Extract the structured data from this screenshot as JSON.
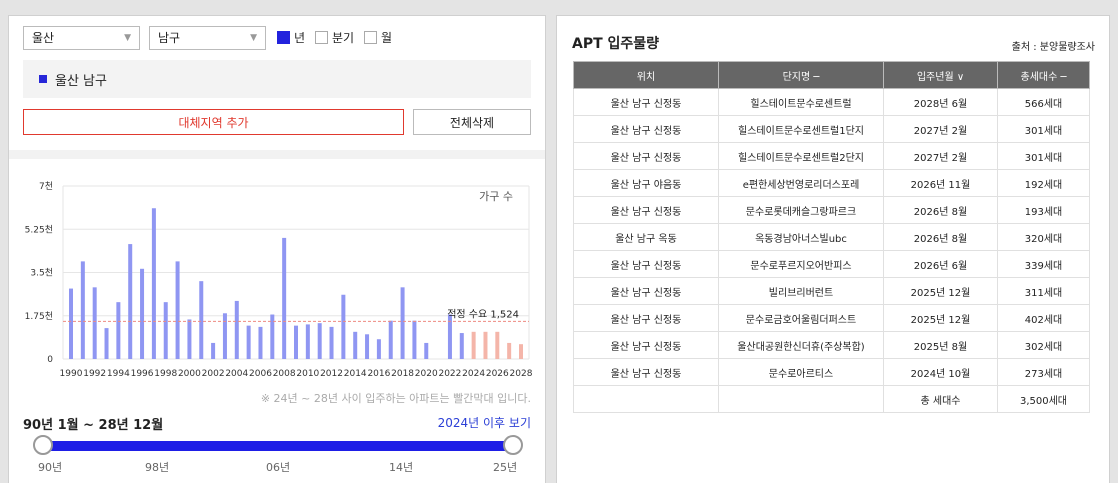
{
  "filters": {
    "city": "울산",
    "district": "남구",
    "period_options": [
      {
        "label": "년",
        "checked": true
      },
      {
        "label": "분기",
        "checked": false
      },
      {
        "label": "월",
        "checked": false
      }
    ]
  },
  "region_tag": "울산 남구",
  "buttons": {
    "alt_region": "대체지역 추가",
    "delete_all": "전체삭제"
  },
  "chart_data": {
    "type": "bar",
    "legend": "가구 수",
    "x": [
      1990,
      1991,
      1992,
      1993,
      1994,
      1995,
      1996,
      1997,
      1998,
      1999,
      2000,
      2001,
      2002,
      2003,
      2004,
      2005,
      2006,
      2007,
      2008,
      2009,
      2010,
      2011,
      2012,
      2013,
      2014,
      2015,
      2016,
      2017,
      2018,
      2019,
      2020,
      2021,
      2022,
      2023,
      2024,
      2025,
      2026,
      2027,
      2028
    ],
    "values": [
      2850,
      3950,
      2900,
      1250,
      2300,
      4650,
      3650,
      6100,
      2300,
      3950,
      1600,
      3150,
      650,
      1850,
      2350,
      1350,
      1300,
      1800,
      4900,
      1350,
      1400,
      1450,
      1300,
      2600,
      1100,
      1000,
      800,
      1550,
      2900,
      1550,
      650,
      0,
      1800,
      1050,
      1100,
      1100,
      1100,
      650,
      600
    ],
    "projected_from": 2024,
    "ylim": [
      0,
      7000
    ],
    "yticks": [
      "0",
      "1.75천",
      "3.5천",
      "5.25천",
      "7천"
    ],
    "xticks": [
      "1990",
      "1992",
      "1994",
      "1996",
      "1998",
      "2000",
      "2002",
      "2004",
      "2006",
      "2008",
      "2010",
      "2012",
      "2014",
      "2016",
      "2018",
      "2020",
      "2022",
      "2024",
      "2026",
      "2028"
    ],
    "reference_line": {
      "value": 1524,
      "label": "적정 수요 1,524"
    },
    "colors": {
      "past": "#8f96f2",
      "future": "#f4b5a9",
      "ref": "#ee8a80"
    }
  },
  "note": "※ 24년 ~ 28년 사이 입주하는 아파트는 빨간막대 입니다.",
  "range_text": "90년 1월 ~ 28년 12월",
  "after_link": "2024년 이후 보기",
  "slider_labels": [
    "90년",
    "98년",
    "06년",
    "14년",
    "25년"
  ],
  "right": {
    "title": "APT 입주물량",
    "source": "출처 : 분양물량조사",
    "headers": [
      "위치",
      "단지명 ─",
      "입주년월 ∨",
      "총세대수 ─"
    ],
    "rows": [
      [
        "울산 남구 신정동",
        "힐스테이트문수로센트럴",
        "2028년 6월",
        "566세대"
      ],
      [
        "울산 남구 신정동",
        "힐스테이트문수로센트럴1단지",
        "2027년 2월",
        "301세대"
      ],
      [
        "울산 남구 신정동",
        "힐스테이트문수로센트럴2단지",
        "2027년 2월",
        "301세대"
      ],
      [
        "울산 남구 야음동",
        "e편한세상번영로리더스포레",
        "2026년 11월",
        "192세대"
      ],
      [
        "울산 남구 신정동",
        "문수로롯데캐슬그랑파르크",
        "2026년 8월",
        "193세대"
      ],
      [
        "울산 남구 옥동",
        "옥동경남아너스빌ubc",
        "2026년 8월",
        "320세대"
      ],
      [
        "울산 남구 신정동",
        "문수로푸르지오어반피스",
        "2026년 6월",
        "339세대"
      ],
      [
        "울산 남구 신정동",
        "빌리브리버런트",
        "2025년 12월",
        "311세대"
      ],
      [
        "울산 남구 신정동",
        "문수로금호어울림더퍼스트",
        "2025년 12월",
        "402세대"
      ],
      [
        "울산 남구 신정동",
        "울산대공원한신더휴(주상복합)",
        "2025년 8월",
        "302세대"
      ],
      [
        "울산 남구 신정동",
        "문수로아르티스",
        "2024년 10월",
        "273세대"
      ]
    ],
    "total_label": "총 세대수",
    "total_value": "3,500세대"
  }
}
